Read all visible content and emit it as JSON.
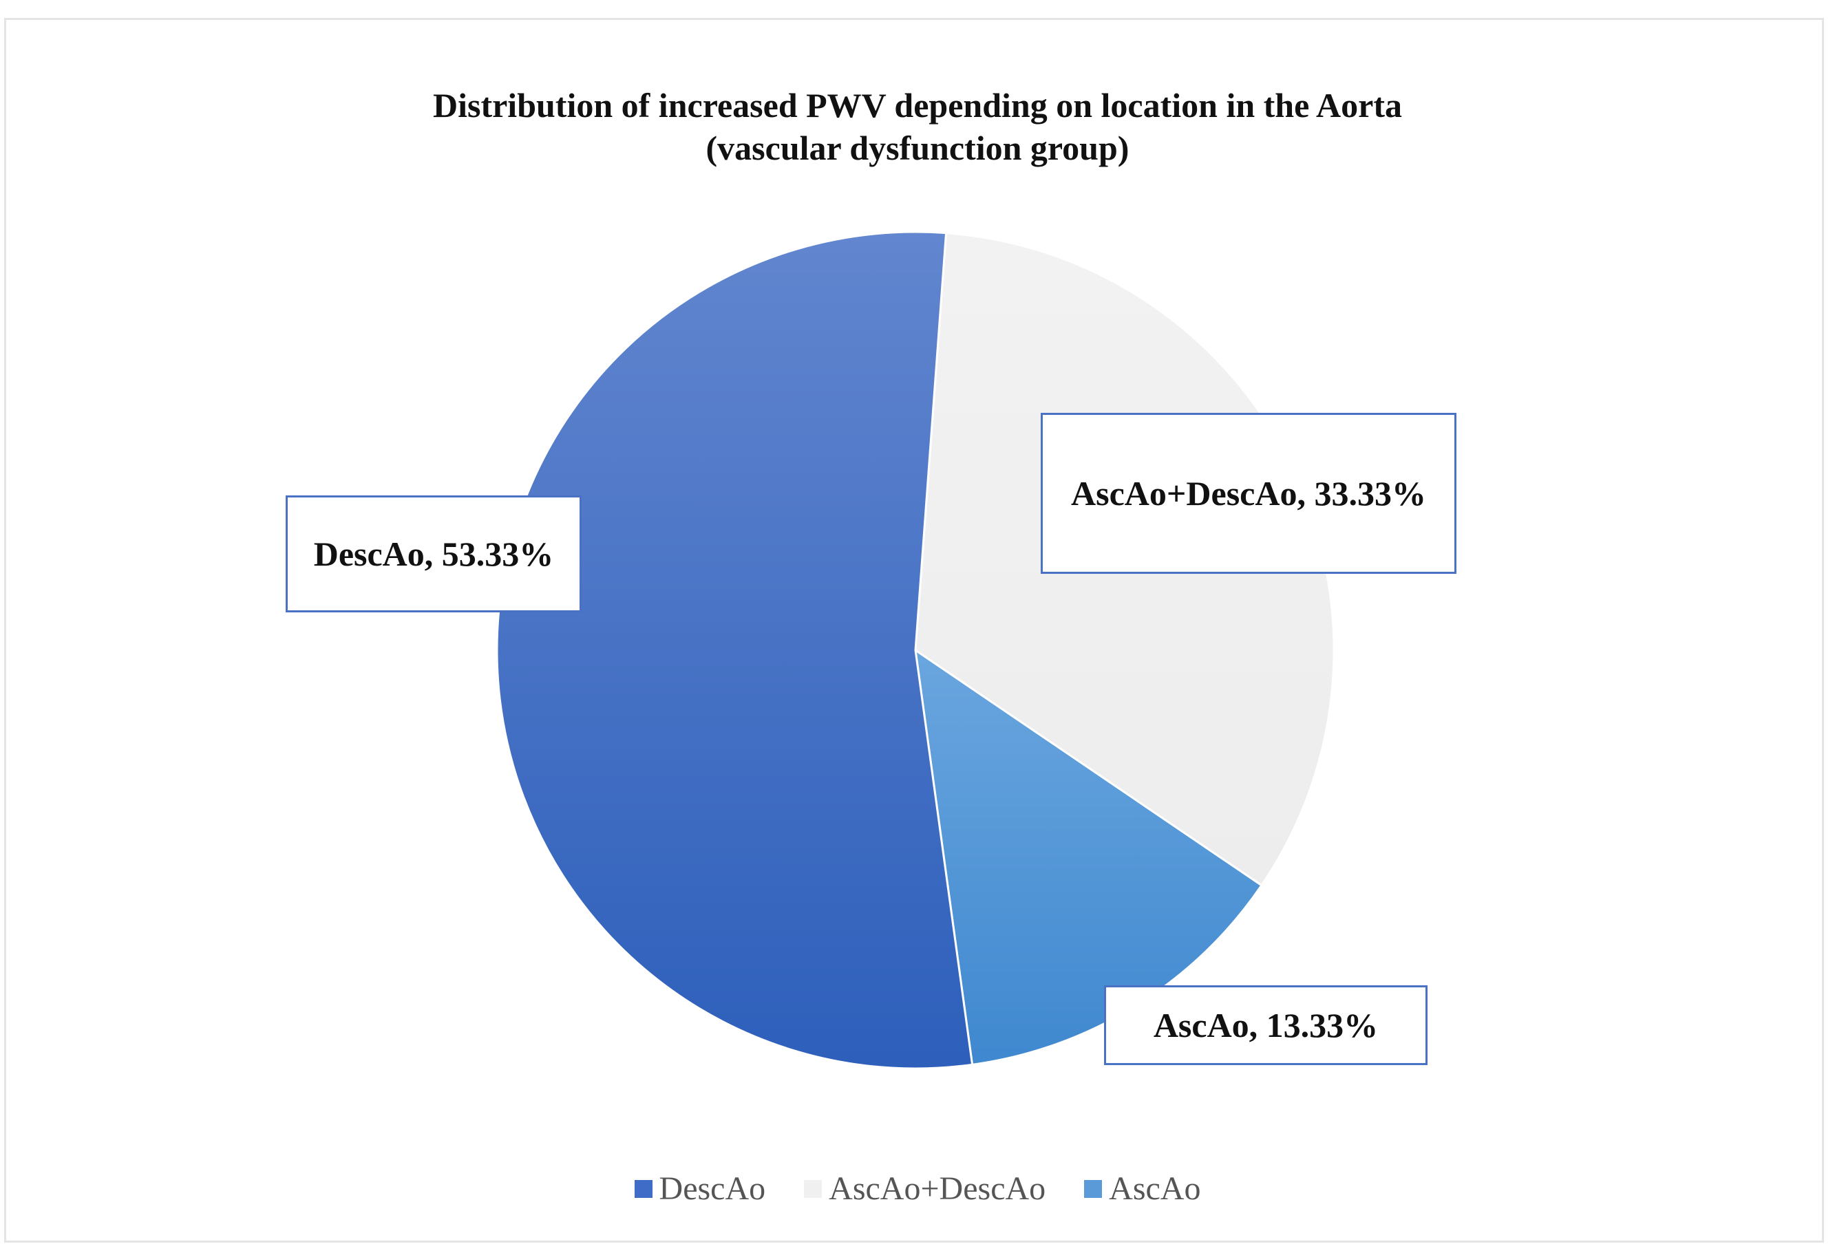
{
  "chart_data": {
    "type": "pie",
    "title": "Distribution of increased PWV depending on location in the Aorta",
    "subtitle": "(vascular dysfunction group)",
    "categories": [
      "DescAo",
      "AscAo+DescAo",
      "AscAo"
    ],
    "values": [
      53.33,
      33.33,
      13.33
    ],
    "data_labels": [
      "DescAo, 53.33%",
      "AscAo+DescAo, 33.33%",
      "AscAo, 13.33%"
    ],
    "colors": [
      "#3e6cc6",
      "#f0f0f0",
      "#5a9ad8"
    ],
    "legend": {
      "position": "bottom",
      "entries": [
        "DescAo",
        "AscAo+DescAo",
        "AscAo"
      ]
    }
  }
}
